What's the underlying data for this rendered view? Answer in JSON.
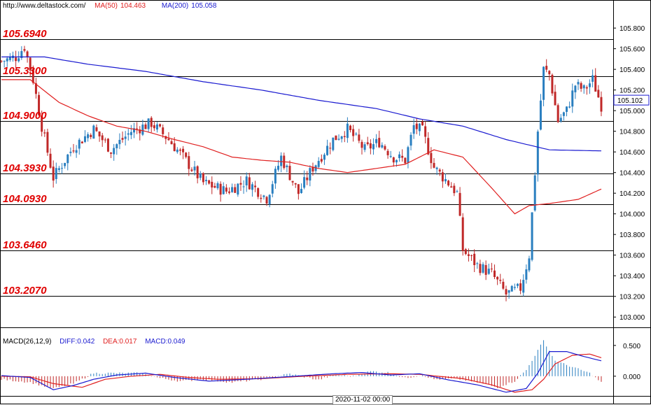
{
  "header": {
    "url": "http://www.deltastock.com/",
    "ma50_label": "MA(50)",
    "ma50_value": "104.463",
    "ma200_label": "MA(200)",
    "ma200_value": "105.058"
  },
  "colors": {
    "ma50": "#e02020",
    "ma200": "#1a1ad0",
    "bull": "#2a7fc0",
    "bear": "#c02828",
    "level_text": "#e00000",
    "diff": "#1a1ad0",
    "dea": "#e02020",
    "hist_pos": "#2a7fc0",
    "hist_neg": "#c02828"
  },
  "macd": {
    "title": "MACD(26,12,9)",
    "diff_label": "DIFF:0.042",
    "dea_label": "DEA:0.017",
    "macd_label": "MACD:0.049"
  },
  "date_label": "2020-11-02 00:00",
  "chart_data": [
    {
      "type": "candlestick",
      "title": "",
      "y_axis_ticks": [
        "105.800",
        "105.600",
        "105.400",
        "105.200",
        "105.000",
        "104.800",
        "104.600",
        "104.400",
        "104.200",
        "104.000",
        "103.800",
        "103.600",
        "103.400",
        "103.200",
        "103.000"
      ],
      "ylim": [
        102.9,
        105.95
      ],
      "current_price": "105.102",
      "levels": [
        "105.6940",
        "105.3300",
        "104.9000",
        "104.3930",
        "104.0930",
        "103.6460",
        "103.2070"
      ],
      "close_waypoints": [
        [
          0,
          105.48
        ],
        [
          5,
          105.52
        ],
        [
          8,
          105.62
        ],
        [
          11,
          105.3
        ],
        [
          14,
          104.85
        ],
        [
          18,
          104.35
        ],
        [
          25,
          104.65
        ],
        [
          32,
          104.82
        ],
        [
          38,
          104.62
        ],
        [
          45,
          104.8
        ],
        [
          52,
          104.88
        ],
        [
          58,
          104.72
        ],
        [
          63,
          104.55
        ],
        [
          70,
          104.3
        ],
        [
          78,
          104.22
        ],
        [
          85,
          104.32
        ],
        [
          92,
          104.15
        ],
        [
          97,
          104.55
        ],
        [
          103,
          104.2
        ],
        [
          108,
          104.45
        ],
        [
          115,
          104.72
        ],
        [
          120,
          104.82
        ],
        [
          126,
          104.62
        ],
        [
          131,
          104.7
        ],
        [
          136,
          104.55
        ],
        [
          140,
          104.52
        ],
        [
          143,
          104.85
        ],
        [
          146,
          104.8
        ],
        [
          150,
          104.45
        ],
        [
          155,
          104.3
        ],
        [
          158,
          104.2
        ],
        [
          160,
          103.65
        ],
        [
          165,
          103.5
        ],
        [
          170,
          103.42
        ],
        [
          175,
          103.22
        ],
        [
          180,
          103.28
        ],
        [
          183,
          103.6
        ],
        [
          186,
          104.8
        ],
        [
          188,
          105.4
        ],
        [
          190,
          105.35
        ],
        [
          193,
          104.9
        ],
        [
          196,
          105.0
        ],
        [
          199,
          105.25
        ],
        [
          202,
          105.2
        ],
        [
          205,
          105.3
        ],
        [
          208,
          105.05
        ]
      ],
      "ma50_waypoints": [
        [
          0,
          105.3
        ],
        [
          10,
          105.3
        ],
        [
          20,
          105.08
        ],
        [
          30,
          104.95
        ],
        [
          40,
          104.85
        ],
        [
          50,
          104.8
        ],
        [
          60,
          104.72
        ],
        [
          70,
          104.65
        ],
        [
          80,
          104.55
        ],
        [
          90,
          104.52
        ],
        [
          100,
          104.5
        ],
        [
          110,
          104.44
        ],
        [
          120,
          104.4
        ],
        [
          130,
          104.44
        ],
        [
          140,
          104.48
        ],
        [
          150,
          104.62
        ],
        [
          160,
          104.55
        ],
        [
          170,
          104.25
        ],
        [
          178,
          104.0
        ],
        [
          183,
          104.08
        ],
        [
          190,
          104.1
        ],
        [
          200,
          104.14
        ],
        [
          208,
          104.24
        ]
      ],
      "ma200_waypoints": [
        [
          0,
          105.52
        ],
        [
          15,
          105.52
        ],
        [
          30,
          105.45
        ],
        [
          50,
          105.38
        ],
        [
          70,
          105.28
        ],
        [
          90,
          105.2
        ],
        [
          110,
          105.1
        ],
        [
          130,
          105.02
        ],
        [
          145,
          104.92
        ],
        [
          160,
          104.85
        ],
        [
          175,
          104.72
        ],
        [
          190,
          104.62
        ],
        [
          208,
          104.61
        ]
      ]
    },
    {
      "type": "bar+line",
      "title": "MACD(26,12,9)",
      "y_axis_ticks": [
        "0.500",
        "0.000"
      ],
      "ylim": [
        -0.32,
        0.68
      ],
      "hist_waypoints": [
        [
          0,
          -0.05
        ],
        [
          10,
          -0.1
        ],
        [
          18,
          -0.2
        ],
        [
          25,
          -0.12
        ],
        [
          32,
          0.05
        ],
        [
          40,
          0.05
        ],
        [
          48,
          0.05
        ],
        [
          55,
          -0.03
        ],
        [
          62,
          -0.08
        ],
        [
          70,
          -0.05
        ],
        [
          80,
          -0.1
        ],
        [
          90,
          -0.05
        ],
        [
          100,
          0.04
        ],
        [
          110,
          -0.06
        ],
        [
          115,
          0.02
        ],
        [
          122,
          0.0
        ],
        [
          128,
          0.08
        ],
        [
          134,
          0.06
        ],
        [
          140,
          -0.03
        ],
        [
          146,
          0.02
        ],
        [
          150,
          -0.05
        ],
        [
          158,
          -0.04
        ],
        [
          165,
          -0.1
        ],
        [
          172,
          -0.18
        ],
        [
          178,
          -0.08
        ],
        [
          182,
          0.1
        ],
        [
          188,
          0.58
        ],
        [
          192,
          0.25
        ],
        [
          198,
          0.15
        ],
        [
          204,
          0.05
        ],
        [
          208,
          -0.1
        ]
      ],
      "diff_waypoints": [
        [
          0,
          0.01
        ],
        [
          10,
          -0.02
        ],
        [
          18,
          -0.22
        ],
        [
          25,
          -0.15
        ],
        [
          32,
          -0.05
        ],
        [
          40,
          0.02
        ],
        [
          50,
          0.05
        ],
        [
          60,
          -0.02
        ],
        [
          72,
          -0.08
        ],
        [
          85,
          -0.05
        ],
        [
          95,
          -0.02
        ],
        [
          105,
          0.01
        ],
        [
          115,
          0.04
        ],
        [
          125,
          0.06
        ],
        [
          135,
          0.02
        ],
        [
          145,
          0.04
        ],
        [
          155,
          -0.06
        ],
        [
          165,
          -0.14
        ],
        [
          175,
          -0.26
        ],
        [
          182,
          -0.2
        ],
        [
          186,
          0.05
        ],
        [
          190,
          0.4
        ],
        [
          196,
          0.4
        ],
        [
          202,
          0.32
        ],
        [
          208,
          0.25
        ]
      ],
      "dea_waypoints": [
        [
          0,
          0.0
        ],
        [
          10,
          -0.01
        ],
        [
          18,
          -0.12
        ],
        [
          28,
          -0.18
        ],
        [
          36,
          -0.05
        ],
        [
          45,
          0.0
        ],
        [
          55,
          0.03
        ],
        [
          65,
          -0.02
        ],
        [
          75,
          -0.05
        ],
        [
          90,
          -0.04
        ],
        [
          105,
          0.0
        ],
        [
          120,
          0.03
        ],
        [
          135,
          0.04
        ],
        [
          145,
          0.03
        ],
        [
          160,
          -0.04
        ],
        [
          170,
          -0.14
        ],
        [
          178,
          -0.26
        ],
        [
          184,
          -0.22
        ],
        [
          188,
          -0.05
        ],
        [
          192,
          0.2
        ],
        [
          198,
          0.34
        ],
        [
          204,
          0.36
        ],
        [
          208,
          0.3
        ]
      ]
    }
  ]
}
